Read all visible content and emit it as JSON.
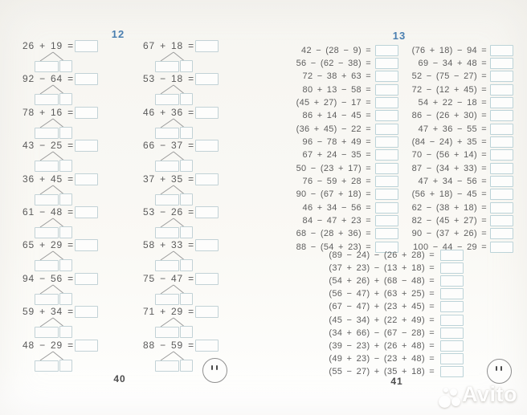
{
  "left_page": {
    "header": "12",
    "page_number": "40",
    "columns": [
      {
        "problems": [
          "26 + 19 =",
          "92 − 64 =",
          "78 + 16 =",
          "43 − 25 =",
          "36 + 45 =",
          "61 − 48 =",
          "65 + 29 =",
          "94 − 56 =",
          "59 + 34 =",
          "48 − 29 ="
        ]
      },
      {
        "problems": [
          "67 + 18 =",
          "53 − 18 =",
          "46 + 36 =",
          "66 − 37 =",
          "37 + 35 =",
          "53 − 26 =",
          "58 + 33 =",
          "75 − 47 =",
          "71 + 29 =",
          "88 − 59 ="
        ]
      }
    ]
  },
  "right_page": {
    "header": "13",
    "page_number": "41",
    "columns": [
      {
        "problems": [
          "42 − (28 − 9) =",
          "56 − (62 − 38) =",
          "72 − 38 + 63 =",
          "80 + 13 − 58 =",
          "(45 + 27) − 17 =",
          "86 + 14 − 45 =",
          "(36 + 45) − 22 =",
          "96 − 78 + 49 =",
          "67 + 24 − 35 =",
          "50 − (23 + 17) =",
          "76 − 59 + 28 =",
          "90 − (67 + 18) =",
          "46 + 34 − 56 =",
          "84 − 47 + 23 =",
          "68 − (28 + 36) =",
          "88 − (54 + 23) ="
        ]
      },
      {
        "problems": [
          "(76 + 18) − 94 =",
          "69 − 34 + 48 =",
          "52 − (75 − 27) =",
          "72 − (12 + 45) =",
          "54 + 22 − 18 =",
          "86 − (26 + 30) =",
          "47 + 36 − 55 =",
          "(84 − 24) + 35 =",
          "70 − (56 + 14) =",
          "87 − (34 + 33) =",
          "47 + 34 − 56 =",
          "(56 + 18) − 45 =",
          "62 − (38 + 18) =",
          "82 − (45 + 27) =",
          "90 − (37 + 26) =",
          "100 − 44 − 29 ="
        ]
      }
    ],
    "centered_problems": [
      "(89 − 24) − (26 + 28) =",
      "(37 + 23) − (13 + 18) =",
      "(54 + 26) + (68 − 48) =",
      "(56 − 47) + (63 + 25) =",
      "(67 − 47) + (23 + 45) =",
      "(45 − 34) + (22 + 49) =",
      "(34 + 66) − (67 − 28) =",
      "(39 − 23) + (26 + 48) =",
      "(49 + 23) − (23 + 48) =",
      "(55 − 27) + (35 + 18) ="
    ]
  },
  "watermark": {
    "brand": "Avito"
  },
  "icons": {
    "bottom_left_face": "smiley-face-icon",
    "bottom_right_face": "smiley-face-icon",
    "watermark_logo": "avito-dots-logo-icon"
  },
  "colors": {
    "header_blue": "#4a7fb0",
    "text_gray": "#5c5c5c",
    "box_border": "#c2d2d6",
    "branch_gray": "#9a9a9a"
  }
}
